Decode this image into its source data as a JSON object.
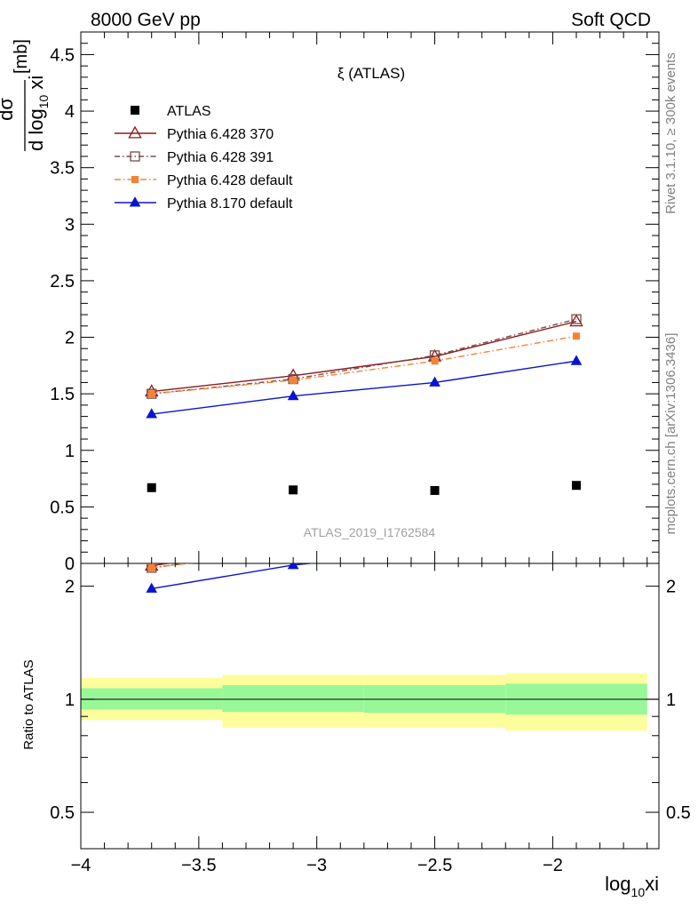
{
  "header": {
    "left": "8000 GeV pp",
    "right": "Soft QCD"
  },
  "side": {
    "rivet": "Rivet 3.1.10, ≥ 300k events",
    "mcplots": "mcplots.cern.ch [arXiv:1306.3436]"
  },
  "chart_data": {
    "type": "line",
    "title": "ξ (ATLAS)",
    "watermark": "ATLAS_2019_I1762584",
    "ylabel_main": {
      "num": "dσ",
      "den": "d log",
      "sub": "10",
      "rest": " xi",
      "unit": "[mb]"
    },
    "ylabel_ratio": "Ratio to ATLAS",
    "xlabel": {
      "pre": "log",
      "sub": "10",
      "post": "xi"
    },
    "xlim": [
      -4.0,
      -1.55
    ],
    "ylim_main": [
      0,
      4.7
    ],
    "ylim_ratio": [
      0.4,
      2.3
    ],
    "ratio_log": true,
    "x_ticks": [
      -4,
      -3.5,
      -3,
      -2.5,
      -2
    ],
    "x_tick_labels": [
      "−4",
      "−3.5",
      "−3",
      "−2.5",
      "−2"
    ],
    "y_ticks_main": [
      0,
      0.5,
      1,
      1.5,
      2,
      2.5,
      3,
      3.5,
      4,
      4.5
    ],
    "y_tick_labels_main": [
      "0",
      "0.5",
      "1",
      "1.5",
      "2",
      "2.5",
      "3",
      "3.5",
      "4",
      "4.5"
    ],
    "y_ticks_ratio": [
      0.5,
      1,
      2
    ],
    "y_tick_labels_ratio": [
      "0.5",
      "1",
      "2"
    ],
    "x": [
      -3.7,
      -3.1,
      -2.5,
      -1.9
    ],
    "bins": [
      [
        -4.0,
        -3.4
      ],
      [
        -3.4,
        -2.8
      ],
      [
        -2.8,
        -2.2
      ],
      [
        -2.2,
        -1.6
      ]
    ],
    "data": {
      "name": "ATLAS",
      "values": [
        0.67,
        0.65,
        0.645,
        0.69
      ]
    },
    "band_inner": [
      [
        0.94,
        1.07
      ],
      [
        0.925,
        1.09
      ],
      [
        0.92,
        1.09
      ],
      [
        0.91,
        1.1
      ]
    ],
    "band_outer": [
      [
        0.88,
        1.14
      ],
      [
        0.84,
        1.16
      ],
      [
        0.84,
        1.16
      ],
      [
        0.825,
        1.17
      ]
    ],
    "series": [
      {
        "name": "Pythia 6.428 370",
        "values": [
          1.52,
          1.66,
          1.83,
          2.14
        ],
        "color": "#8b1a1a"
      },
      {
        "name": "Pythia 6.428 391",
        "values": [
          1.5,
          1.63,
          1.84,
          2.16
        ],
        "color": "#7a4a4a"
      },
      {
        "name": "Pythia 6.428 default",
        "values": [
          1.5,
          1.62,
          1.79,
          2.01
        ],
        "color": "#f58231"
      },
      {
        "name": "Pythia 8.170 default",
        "values": [
          1.32,
          1.48,
          1.6,
          1.79
        ],
        "color": "#0a14d0"
      }
    ],
    "colors": {
      "band_inner": "#98f898",
      "band_outer": "#fdfd9c",
      "data": "#000000",
      "watermark": "#a0a0a0",
      "side_text": "#808080"
    }
  }
}
